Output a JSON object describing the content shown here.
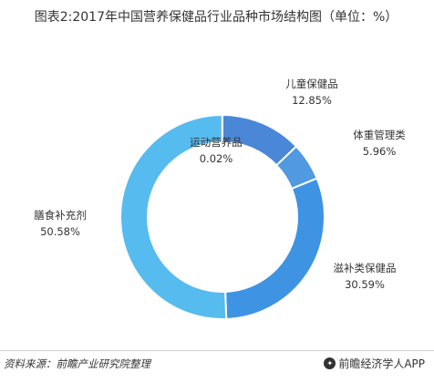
{
  "chart_data": {
    "type": "pie",
    "title": "图表2:2017年中国营养保健品行业品种市场结构图（单位：%）",
    "categories": [
      "儿童保健品",
      "体重管理类",
      "滋补类保健品",
      "膳食补充剂",
      "运动营养品"
    ],
    "values": [
      12.85,
      5.96,
      30.59,
      50.58,
      0.02
    ],
    "value_labels": [
      "12.85%",
      "5.96%",
      "30.59%",
      "50.58%",
      "0.02%"
    ],
    "colors": [
      "#4a87d6",
      "#5199e1",
      "#3e93e3",
      "#56bbef",
      "#2b63c4"
    ],
    "donut": true,
    "legend": "none"
  },
  "footer": {
    "source": "资料来源：前瞻产业研究院整理",
    "brand": "前瞻经济学人APP"
  }
}
